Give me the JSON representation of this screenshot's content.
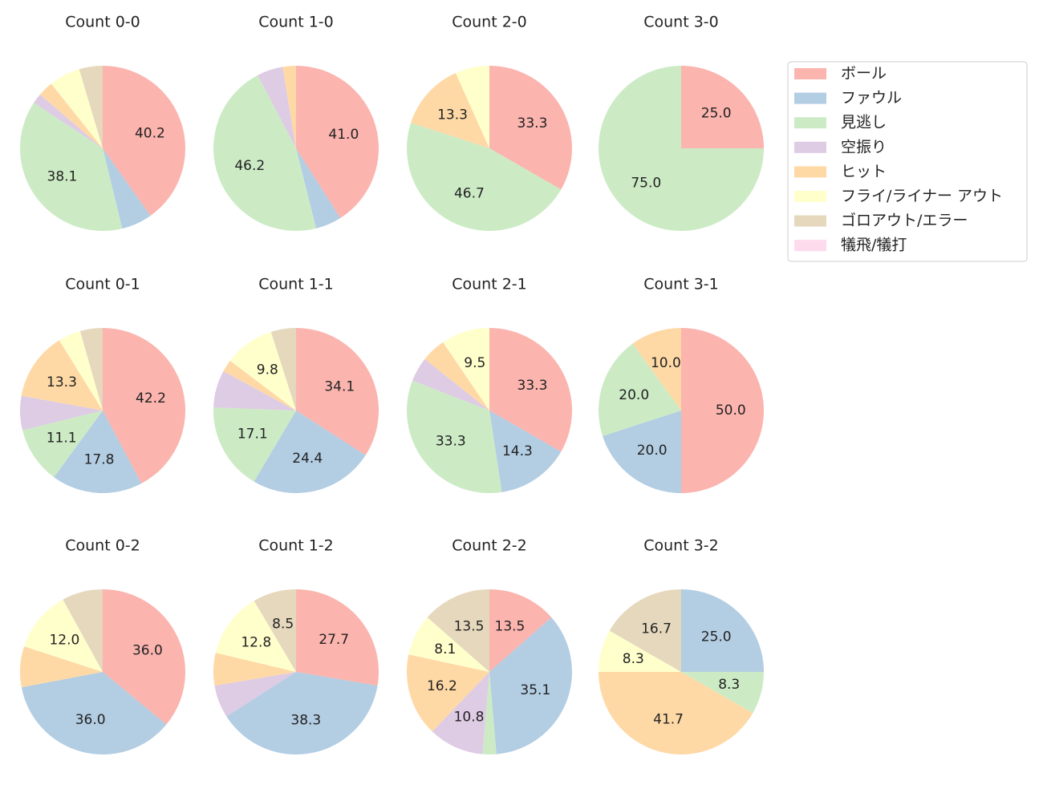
{
  "legend": {
    "labels": [
      "ボール",
      "ファウル",
      "見逃し",
      "空振り",
      "ヒット",
      "フライ/ライナー アウト",
      "ゴロアウト/エラー",
      "犠飛/犠打"
    ],
    "colors": [
      "#fbb4ae",
      "#b3cde3",
      "#ccebc5",
      "#decbe4",
      "#fed9a6",
      "#ffffcc",
      "#e5d8bd",
      "#fddaec"
    ]
  },
  "chart_data": [
    {
      "type": "pie",
      "title": "Count 0-0",
      "values": [
        40.2,
        6.0,
        38.1,
        2.0,
        3.0,
        6.1,
        4.6,
        0
      ],
      "value_labels": [
        "40.2",
        null,
        "38.1",
        null,
        null,
        null,
        null,
        null
      ]
    },
    {
      "type": "pie",
      "title": "Count 1-0",
      "values": [
        41.0,
        5.1,
        46.2,
        5.1,
        2.6,
        0,
        0,
        0
      ],
      "value_labels": [
        "41.0",
        null,
        "46.2",
        null,
        null,
        null,
        null,
        null
      ]
    },
    {
      "type": "pie",
      "title": "Count 2-0",
      "values": [
        33.3,
        0,
        46.7,
        0,
        13.3,
        6.7,
        0,
        0
      ],
      "value_labels": [
        "33.3",
        null,
        "46.7",
        null,
        "13.3",
        null,
        null,
        null
      ]
    },
    {
      "type": "pie",
      "title": "Count 3-0",
      "values": [
        25.0,
        0,
        75.0,
        0,
        0,
        0,
        0,
        0
      ],
      "value_labels": [
        "25.0",
        null,
        "75.0",
        null,
        null,
        null,
        null,
        null
      ]
    },
    {
      "type": "pie",
      "title": "Count 0-1",
      "values": [
        42.2,
        17.8,
        11.1,
        6.7,
        13.3,
        4.4,
        4.4,
        0
      ],
      "value_labels": [
        "42.2",
        "17.8",
        "11.1",
        null,
        "13.3",
        null,
        null,
        null
      ]
    },
    {
      "type": "pie",
      "title": "Count 1-1",
      "values": [
        34.1,
        24.4,
        17.1,
        7.3,
        2.4,
        9.8,
        4.9,
        0
      ],
      "value_labels": [
        "34.1",
        "24.4",
        "17.1",
        null,
        null,
        "9.8",
        null,
        null
      ]
    },
    {
      "type": "pie",
      "title": "Count 2-1",
      "values": [
        33.3,
        14.3,
        33.3,
        4.8,
        4.8,
        9.5,
        0,
        0
      ],
      "value_labels": [
        "33.3",
        "14.3",
        "33.3",
        null,
        null,
        "9.5",
        null,
        null
      ]
    },
    {
      "type": "pie",
      "title": "Count 3-1",
      "values": [
        50.0,
        20.0,
        20.0,
        0,
        10.0,
        0,
        0,
        0
      ],
      "value_labels": [
        "50.0",
        "20.0",
        "20.0",
        null,
        "10.0",
        null,
        null,
        null
      ]
    },
    {
      "type": "pie",
      "title": "Count 0-2",
      "values": [
        36.0,
        36.0,
        0,
        0,
        8.0,
        12.0,
        8.0,
        0
      ],
      "value_labels": [
        "36.0",
        "36.0",
        null,
        null,
        null,
        "12.0",
        null,
        null
      ]
    },
    {
      "type": "pie",
      "title": "Count 1-2",
      "values": [
        27.7,
        38.3,
        0,
        6.4,
        6.4,
        12.8,
        8.5,
        0
      ],
      "value_labels": [
        "27.7",
        "38.3",
        null,
        null,
        null,
        "12.8",
        "8.5",
        null
      ]
    },
    {
      "type": "pie",
      "title": "Count 2-2",
      "values": [
        13.5,
        35.1,
        2.7,
        10.8,
        16.2,
        8.1,
        13.5,
        0
      ],
      "value_labels": [
        "13.5",
        "35.1",
        null,
        "10.8",
        "16.2",
        "8.1",
        "13.5",
        null
      ]
    },
    {
      "type": "pie",
      "title": "Count 3-2",
      "values": [
        0,
        25.0,
        8.3,
        0,
        41.7,
        8.3,
        16.7,
        0
      ],
      "value_labels": [
        null,
        "25.0",
        "8.3",
        null,
        "41.7",
        "8.3",
        "16.7",
        null
      ]
    }
  ]
}
